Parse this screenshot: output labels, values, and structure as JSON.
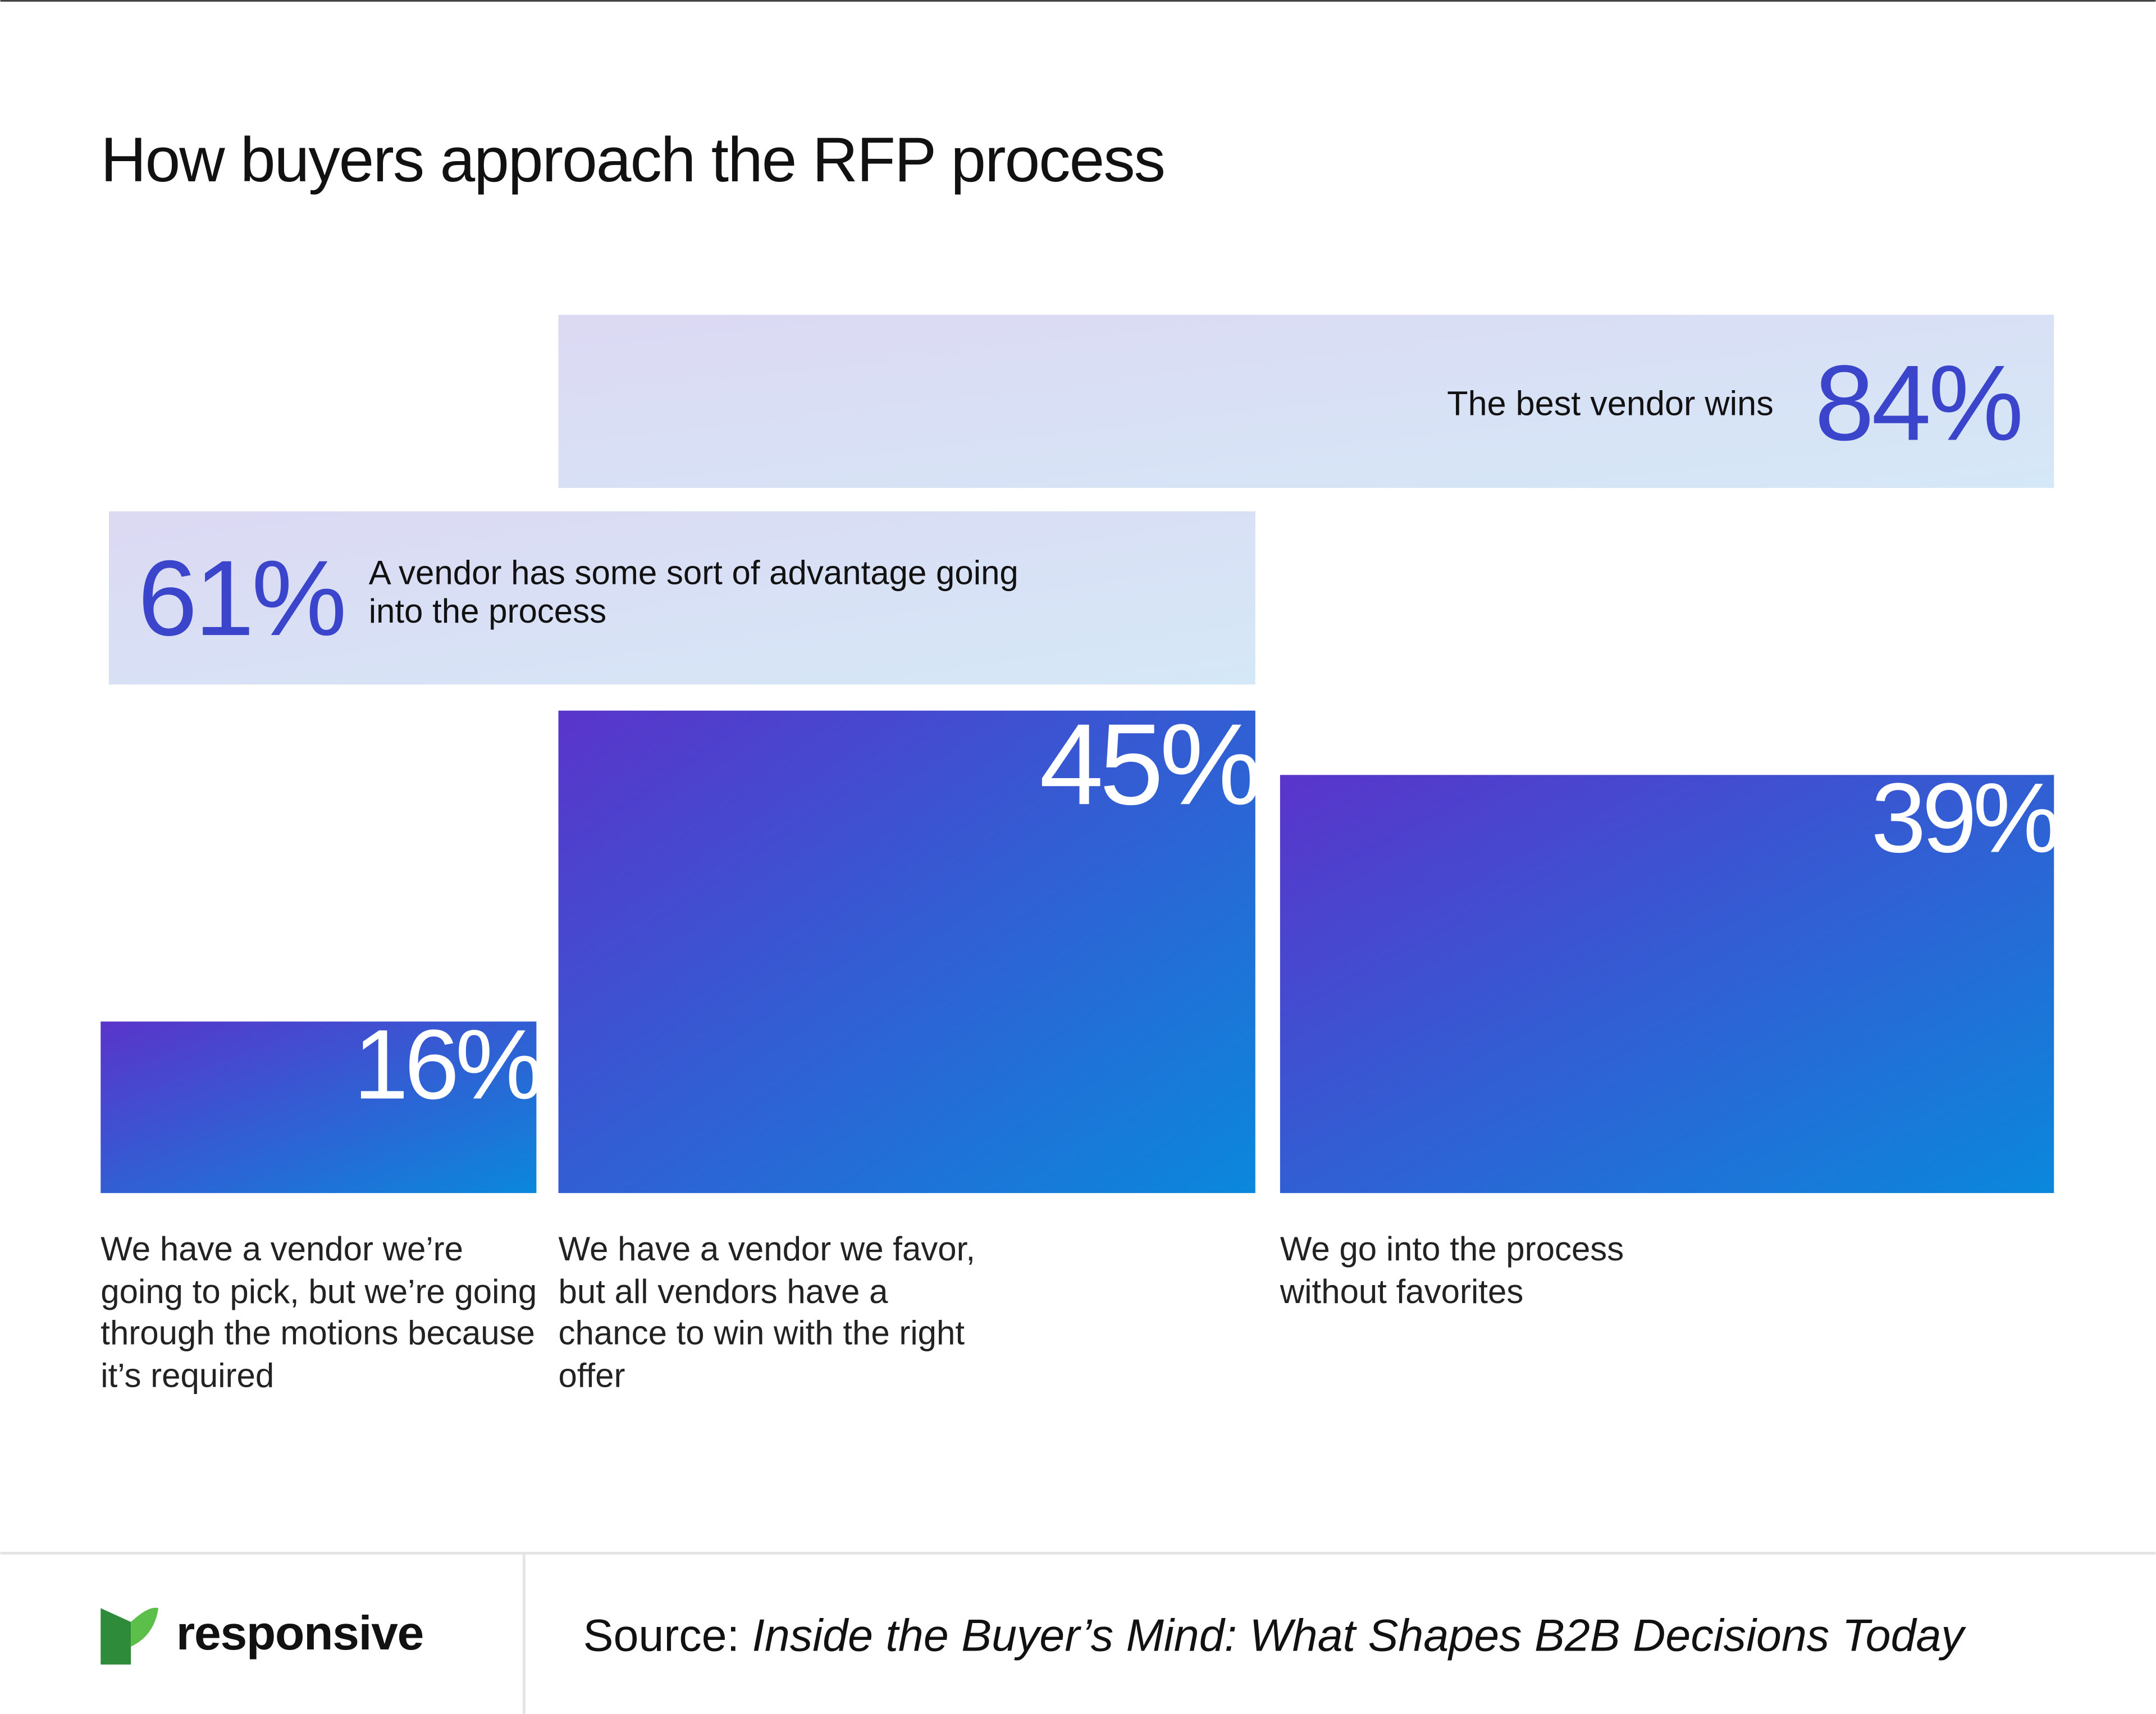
{
  "title": "How buyers approach the RFP process",
  "chart_data": {
    "type": "bar",
    "categories": [
      "We have a vendor we’re going to pick, but we’re going through the motions because it’s required",
      "We have a vendor we favor, but all vendors have a chance to win with the right offer",
      "We go into the process without favorites"
    ],
    "values": [
      16,
      45,
      39
    ],
    "value_labels": [
      "16%",
      "45%",
      "39%"
    ],
    "colors": [
      "#5a34cb",
      "#0a88dc"
    ],
    "groups": [
      {
        "label": "The best vendor wins",
        "value": 84,
        "value_label": "84%"
      },
      {
        "label": "A vendor has some sort of advantage going into the process",
        "value": 61,
        "value_label": "61%"
      }
    ]
  },
  "footer": {
    "brand": "responsive",
    "source_prefix": "Source:",
    "source_title": "Inside the Buyer’s Mind: What Shapes B2B Decisions Today"
  }
}
